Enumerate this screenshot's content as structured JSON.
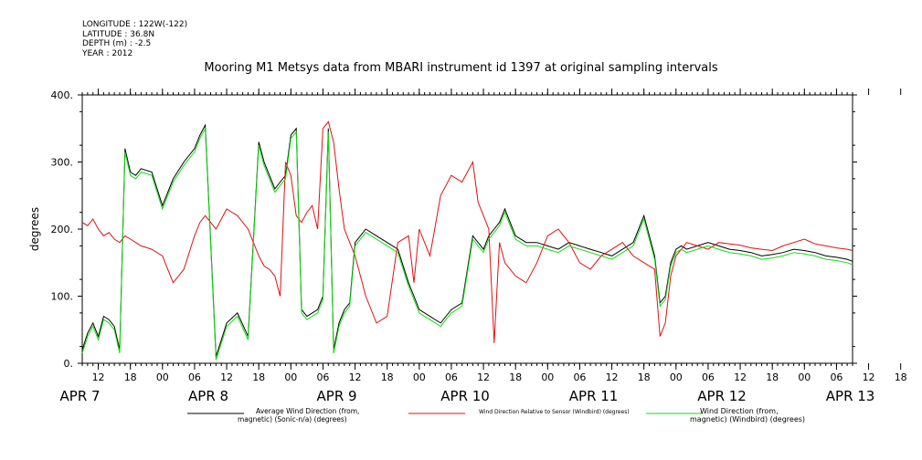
{
  "header": {
    "lines": [
      "LONGITUDE : 122W(-122)",
      "LATITUDE : 36.8N",
      "DEPTH (m) : -2.5",
      "YEAR : 2012"
    ]
  },
  "chart_data": {
    "type": "line",
    "title": "Mooring M1 Metsys data from MBARI instrument id 1397 at original sampling intervals",
    "xlabel": "",
    "ylabel": "degrees",
    "ylim": [
      0,
      400
    ],
    "yticks": [
      0,
      100,
      200,
      300,
      400
    ],
    "xlim_hours": [
      9,
      153
    ],
    "hour_ticks": [
      "12",
      "18",
      "00",
      "06",
      "12",
      "18",
      "00",
      "06",
      "12",
      "18",
      "00",
      "06",
      "12",
      "18",
      "00",
      "06",
      "12",
      "18",
      "00",
      "06",
      "12",
      "18",
      "00",
      "06",
      "12",
      "18",
      "00"
    ],
    "day_labels": [
      "APR  7",
      "APR  8",
      "APR  9",
      "APR 10",
      "APR 11",
      "APR 12",
      "APR 13"
    ],
    "grid": false,
    "legend_position": "bottom",
    "series": [
      {
        "name": "Average Wind Direction (from, magnetic) (Sonic-n/a) (degrees)",
        "color": "#000000",
        "x": [
          9,
          10,
          11,
          12,
          13,
          14,
          15,
          16,
          17,
          18,
          19,
          20,
          22,
          24,
          26,
          28,
          30,
          31,
          32,
          34,
          36,
          38,
          40,
          42,
          43,
          44,
          45,
          46,
          47,
          48,
          49,
          50,
          51,
          52,
          53,
          54,
          55,
          56,
          57,
          58,
          59,
          60,
          62,
          64,
          66,
          68,
          70,
          71,
          72,
          74,
          76,
          78,
          80,
          82,
          83,
          84,
          85,
          86,
          87,
          88,
          89,
          90,
          92,
          94,
          96,
          98,
          100,
          102,
          104,
          106,
          108,
          110,
          112,
          114,
          116,
          117,
          118,
          119,
          120,
          121,
          122,
          124,
          126,
          128,
          130,
          132,
          134,
          136,
          138,
          140,
          142,
          144,
          146,
          148,
          150,
          152,
          153
        ],
        "y": [
          20,
          45,
          60,
          40,
          70,
          65,
          55,
          20,
          320,
          285,
          280,
          290,
          285,
          235,
          275,
          300,
          320,
          340,
          355,
          10,
          60,
          75,
          40,
          330,
          300,
          280,
          260,
          270,
          280,
          340,
          350,
          80,
          70,
          75,
          80,
          100,
          350,
          20,
          60,
          80,
          90,
          180,
          200,
          190,
          180,
          170,
          120,
          100,
          80,
          70,
          60,
          80,
          90,
          190,
          180,
          170,
          190,
          200,
          210,
          230,
          210,
          190,
          180,
          180,
          175,
          170,
          180,
          175,
          170,
          165,
          160,
          170,
          180,
          220,
          160,
          90,
          100,
          150,
          170,
          175,
          170,
          175,
          180,
          175,
          170,
          168,
          165,
          160,
          162,
          165,
          170,
          168,
          165,
          160,
          158,
          155,
          152
        ]
      },
      {
        "name": "Wind Direction Relative to Sensor (Windbird) (degrees)",
        "color": "#e01010",
        "x": [
          9,
          10,
          11,
          12,
          13,
          14,
          15,
          16,
          17,
          18,
          19,
          20,
          22,
          24,
          26,
          28,
          30,
          31,
          32,
          34,
          36,
          38,
          40,
          42,
          43,
          44,
          45,
          46,
          47,
          48,
          49,
          50,
          51,
          52,
          53,
          54,
          55,
          56,
          57,
          58,
          59,
          60,
          62,
          64,
          66,
          68,
          70,
          71,
          72,
          74,
          76,
          78,
          80,
          82,
          83,
          84,
          85,
          86,
          87,
          88,
          89,
          90,
          92,
          94,
          96,
          98,
          100,
          102,
          104,
          106,
          108,
          110,
          112,
          114,
          116,
          117,
          118,
          119,
          120,
          121,
          122,
          124,
          126,
          128,
          130,
          132,
          134,
          136,
          138,
          140,
          142,
          144,
          146,
          148,
          150,
          152,
          153
        ],
        "y": [
          210,
          205,
          215,
          200,
          190,
          195,
          185,
          180,
          190,
          185,
          180,
          175,
          170,
          160,
          120,
          140,
          190,
          210,
          220,
          200,
          230,
          220,
          200,
          160,
          145,
          140,
          130,
          100,
          300,
          280,
          220,
          210,
          225,
          235,
          200,
          350,
          360,
          330,
          260,
          200,
          180,
          160,
          100,
          60,
          70,
          180,
          190,
          120,
          200,
          160,
          250,
          280,
          270,
          300,
          240,
          220,
          200,
          30,
          180,
          150,
          140,
          130,
          120,
          150,
          190,
          200,
          180,
          150,
          140,
          160,
          170,
          180,
          160,
          150,
          140,
          40,
          60,
          130,
          160,
          170,
          180,
          175,
          170,
          180,
          178,
          176,
          172,
          170,
          168,
          175,
          180,
          185,
          178,
          175,
          172,
          170,
          168
        ]
      },
      {
        "name": "Wind Direction (from, magnetic) (Windbird) (degrees)",
        "color": "#10dd10",
        "x": [
          9,
          10,
          11,
          12,
          13,
          14,
          15,
          16,
          17,
          18,
          19,
          20,
          22,
          24,
          26,
          28,
          30,
          31,
          32,
          34,
          36,
          38,
          40,
          42,
          43,
          44,
          45,
          46,
          47,
          48,
          49,
          50,
          51,
          52,
          53,
          54,
          55,
          56,
          57,
          58,
          59,
          60,
          62,
          64,
          66,
          68,
          70,
          71,
          72,
          74,
          76,
          78,
          80,
          82,
          83,
          84,
          85,
          86,
          87,
          88,
          89,
          90,
          92,
          94,
          96,
          98,
          100,
          102,
          104,
          106,
          108,
          110,
          112,
          114,
          116,
          117,
          118,
          119,
          120,
          121,
          122,
          124,
          126,
          128,
          130,
          132,
          134,
          136,
          138,
          140,
          142,
          144,
          146,
          148,
          150,
          152,
          153
        ],
        "y": [
          15,
          40,
          55,
          35,
          65,
          60,
          50,
          15,
          315,
          280,
          275,
          285,
          280,
          230,
          270,
          295,
          315,
          335,
          350,
          5,
          55,
          70,
          35,
          325,
          295,
          275,
          255,
          265,
          275,
          335,
          345,
          75,
          65,
          70,
          75,
          95,
          345,
          15,
          55,
          75,
          85,
          175,
          195,
          185,
          175,
          165,
          115,
          95,
          75,
          65,
          55,
          75,
          85,
          185,
          175,
          165,
          185,
          195,
          205,
          225,
          205,
          185,
          175,
          175,
          170,
          165,
          175,
          170,
          165,
          160,
          155,
          165,
          175,
          215,
          155,
          85,
          95,
          145,
          165,
          170,
          165,
          170,
          175,
          170,
          165,
          163,
          160,
          155,
          157,
          160,
          165,
          163,
          160,
          155,
          153,
          150,
          147
        ]
      }
    ]
  }
}
